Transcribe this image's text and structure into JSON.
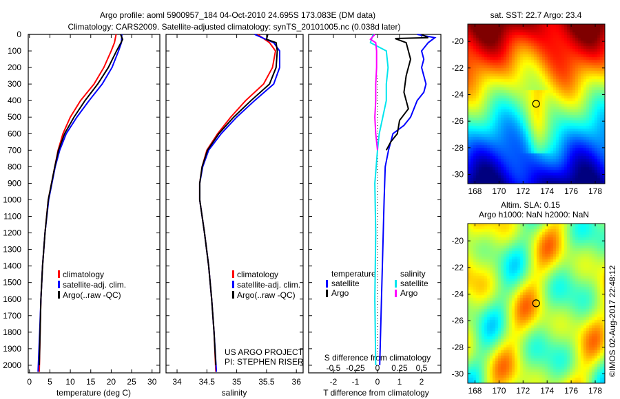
{
  "header": {
    "title_line1": "Argo profile: aoml 5900957_184 04-Oct-2010 24.695S 173.083E (DM data)",
    "title_line2": "Climatology: CARS2009. Satellite-adjusted climatology: synTS_20101005.nc (0.038d later)"
  },
  "credit": {
    "project": "US ARGO PROJECT",
    "pi": "PI: STEPHEN RISER",
    "copyright": "©IMOS 02-Aug-2017 22:48:12"
  },
  "colors": {
    "climatology": "#ff0000",
    "satellite": "#0000ff",
    "argo": "#000000",
    "sal_satellite": "#00e5ee",
    "sal_argo": "#ff00ff"
  },
  "chart_data": [
    {
      "type": "line",
      "id": "temperature",
      "xlabel": "temperature (deg C)",
      "xlim": [
        -0.3,
        31.9
      ],
      "xticks": [
        0,
        5,
        10,
        15,
        20,
        25,
        30
      ],
      "xtick_labels": [
        "0",
        "5",
        "10",
        "15",
        "20",
        "25",
        "30"
      ],
      "ylim": [
        0,
        2046
      ],
      "yticks": [
        0,
        100,
        200,
        300,
        400,
        500,
        600,
        700,
        800,
        900,
        1000,
        1100,
        1200,
        1300,
        1400,
        1500,
        1600,
        1700,
        1800,
        1900,
        2000
      ],
      "ytick_labels": [
        "0",
        "100",
        "200",
        "300",
        "400",
        "500",
        "600",
        "700",
        "800",
        "900",
        "1000",
        "1100",
        "1200",
        "1300",
        "1400",
        "1500",
        "1600",
        "1700",
        "1800",
        "1900",
        "2000"
      ],
      "legend": [
        "climatology",
        "satellite-adj. clim.",
        "Argo(..raw -QC)"
      ],
      "legend_position": "lower-middle",
      "series": [
        {
          "name": "climatology",
          "color": "#ff0000",
          "depth": [
            0,
            50,
            100,
            200,
            300,
            400,
            500,
            600,
            700,
            800,
            900,
            1000,
            1200,
            1400,
            1600,
            1800,
            2040
          ],
          "values": [
            21.2,
            20.8,
            20,
            18.2,
            15.8,
            12.5,
            10,
            8.2,
            7,
            6.2,
            5.4,
            4.6,
            3.8,
            3.2,
            2.8,
            2.6,
            2.4
          ]
        },
        {
          "name": "satellite-adj. clim.",
          "color": "#0000ff",
          "depth": [
            0,
            50,
            100,
            200,
            300,
            400,
            500,
            600,
            700,
            800,
            900,
            1000,
            1200,
            1400,
            1600,
            1800,
            2040
          ],
          "values": [
            22.6,
            22.5,
            21.8,
            20.2,
            17.8,
            14.6,
            11.6,
            9,
            7.4,
            6.3,
            5.5,
            4.7,
            3.8,
            3.2,
            2.8,
            2.5,
            2.1
          ]
        },
        {
          "name": "Argo(..raw -QC)",
          "color": "#000000",
          "depth": [
            0,
            30,
            50,
            100,
            200,
            300,
            400,
            500,
            600,
            700,
            800,
            900,
            1000,
            1200,
            1400,
            1600,
            1800,
            2000
          ],
          "values": [
            22.3,
            22.8,
            22.4,
            21.3,
            19.3,
            16.7,
            13.6,
            10.9,
            8.6,
            7.1,
            6.2,
            5.4,
            4.6,
            3.8,
            3.2,
            2.8,
            2.6,
            2.4
          ]
        }
      ]
    },
    {
      "type": "line",
      "id": "salinity",
      "xlabel": "salinity",
      "xlim": [
        33.815,
        36.113
      ],
      "xticks": [
        34,
        34.5,
        35,
        35.5,
        36
      ],
      "xtick_labels": [
        "34",
        "34.5",
        "35",
        "35.5",
        "36"
      ],
      "ylim": [
        0,
        2046
      ],
      "yticks": [
        0,
        100,
        200,
        300,
        400,
        500,
        600,
        700,
        800,
        900,
        1000,
        1100,
        1200,
        1300,
        1400,
        1500,
        1600,
        1700,
        1800,
        1900,
        2000
      ],
      "legend": [
        "climatology",
        "satellite-adj. clim.",
        "Argo(..raw -QC)"
      ],
      "legend_position": "lower-right",
      "series": [
        {
          "name": "climatology",
          "color": "#ff0000",
          "depth": [
            0,
            50,
            100,
            200,
            300,
            400,
            500,
            600,
            700,
            800,
            900,
            1000,
            1100,
            1200,
            1400,
            1600,
            1800,
            2040
          ],
          "values": [
            35.35,
            35.55,
            35.65,
            35.6,
            35.45,
            35.15,
            34.9,
            34.68,
            34.5,
            34.42,
            34.38,
            34.38,
            34.42,
            34.46,
            34.53,
            34.58,
            34.62,
            34.65
          ]
        },
        {
          "name": "satellite-adj. clim.",
          "color": "#0000ff",
          "depth": [
            0,
            50,
            100,
            200,
            300,
            400,
            500,
            600,
            700,
            800,
            900,
            1000,
            1100,
            1200,
            1400,
            1600,
            1800,
            2040
          ],
          "values": [
            35.3,
            35.62,
            35.72,
            35.72,
            35.62,
            35.3,
            35.0,
            34.74,
            34.53,
            34.43,
            34.38,
            34.38,
            34.42,
            34.46,
            34.53,
            34.58,
            34.62,
            34.66
          ]
        },
        {
          "name": "Argo(..raw -QC)",
          "color": "#000000",
          "depth": [
            0,
            30,
            50,
            100,
            200,
            300,
            400,
            500,
            600,
            700,
            800,
            900,
            1000,
            1100,
            1200,
            1400,
            1600,
            1800,
            2000
          ],
          "values": [
            35.52,
            35.5,
            35.66,
            35.68,
            35.66,
            35.55,
            35.24,
            34.95,
            34.7,
            34.51,
            34.42,
            34.38,
            34.38,
            34.42,
            34.46,
            34.53,
            34.58,
            34.62,
            34.65
          ]
        }
      ]
    },
    {
      "type": "line",
      "id": "difference",
      "xlabel": "T difference from climatology",
      "xlabel_top": "S difference from climatology",
      "xlim": [
        -3.125,
        2.875
      ],
      "xticks": [
        -2,
        -1,
        0,
        1,
        2
      ],
      "xtick_labels": [
        "-2",
        "-1",
        "0",
        "1",
        "2"
      ],
      "s_xlim": [
        -0.781,
        0.719
      ],
      "s_xticks": [
        -0.5,
        -0.25,
        0,
        0.25,
        0.5
      ],
      "s_xtick_labels": [
        "-0.5",
        "-0.25",
        "0",
        "0.25",
        "0.5"
      ],
      "ylim": [
        0,
        2046
      ],
      "yticks": [
        0,
        100,
        200,
        300,
        400,
        500,
        600,
        700,
        800,
        900,
        1000,
        1100,
        1200,
        1300,
        1400,
        1500,
        1600,
        1700,
        1800,
        1900,
        2000
      ],
      "legend_groups": [
        {
          "title": "temperature",
          "items": [
            "satellite",
            "Argo"
          ]
        },
        {
          "title": "salinity",
          "items": [
            "satellite",
            "Argo"
          ]
        }
      ],
      "series": [
        {
          "name": "temperature satellite",
          "axis": "T",
          "color": "#0000ff",
          "depth": [
            0,
            20,
            50,
            100,
            150,
            200,
            300,
            350,
            400,
            500,
            550,
            600,
            700,
            800,
            1000,
            1500,
            2000
          ],
          "values": [
            1.8,
            2.6,
            2.3,
            2.0,
            2.1,
            2.0,
            2.2,
            2.1,
            1.8,
            1.5,
            1.2,
            0.7,
            0.5,
            0.35,
            0.3,
            0.2,
            0.1
          ]
        },
        {
          "name": "temperature Argo",
          "axis": "T",
          "color": "#000000",
          "depth": [
            0,
            20,
            25,
            50,
            100,
            150,
            250,
            350,
            450,
            520,
            600,
            650,
            700
          ],
          "values": [
            2.0,
            2.3,
            0.8,
            1.3,
            1.4,
            1.5,
            1.3,
            1.2,
            1.4,
            1.0,
            0.9,
            0.6,
            0.4
          ]
        },
        {
          "name": "salinity satellite",
          "axis": "S",
          "color": "#00e5ee",
          "depth": [
            0,
            50,
            100,
            200,
            300,
            400,
            500,
            600,
            700,
            900,
            1200,
            1600,
            2000
          ],
          "values": [
            -0.05,
            -0.08,
            0.1,
            0.12,
            0.1,
            0.1,
            0.06,
            0.02,
            0,
            -0.03,
            -0.02,
            -0.03,
            -0.02
          ]
        },
        {
          "name": "salinity Argo",
          "axis": "S",
          "color": "#ff00ff",
          "depth": [
            0,
            30,
            50,
            100,
            200,
            300,
            400,
            500,
            600,
            700
          ],
          "values": [
            -0.03,
            -0.08,
            -0.02,
            -0.01,
            -0.01,
            -0.02,
            -0.02,
            -0.03,
            -0.02,
            0.0
          ]
        }
      ]
    },
    {
      "type": "heatmap",
      "id": "sst-map",
      "title": "sat. SST: 22.7 Argo: 23.4",
      "xlim": [
        167.4,
        178.8
      ],
      "ylim": [
        -30.7,
        -18.7
      ],
      "xticks": [
        168,
        170,
        172,
        174,
        176,
        178
      ],
      "xtick_labels": [
        "168",
        "170",
        "172",
        "174",
        "176",
        "178"
      ],
      "yticks": [
        -20,
        -22,
        -24,
        -26,
        -28,
        -30
      ],
      "ytick_labels": [
        "-20",
        "-22",
        "-24",
        "-26",
        "-28",
        "-30"
      ],
      "marker": {
        "lon": 173.083,
        "lat": -24.695
      }
    },
    {
      "type": "heatmap",
      "id": "sla-map",
      "title": "Altim. SLA: 0.15",
      "subtitle": "Argo h1000: NaN h2000: NaN",
      "xlim": [
        167.4,
        178.8
      ],
      "ylim": [
        -30.7,
        -18.7
      ],
      "xticks": [
        168,
        170,
        172,
        174,
        176,
        178
      ],
      "xtick_labels": [
        "168",
        "170",
        "172",
        "174",
        "176",
        "178"
      ],
      "yticks": [
        -20,
        -22,
        -24,
        -26,
        -28,
        -30
      ],
      "ytick_labels": [
        "-20",
        "-22",
        "-24",
        "-26",
        "-28",
        "-30"
      ],
      "marker": {
        "lon": 173.083,
        "lat": -24.695
      }
    }
  ]
}
